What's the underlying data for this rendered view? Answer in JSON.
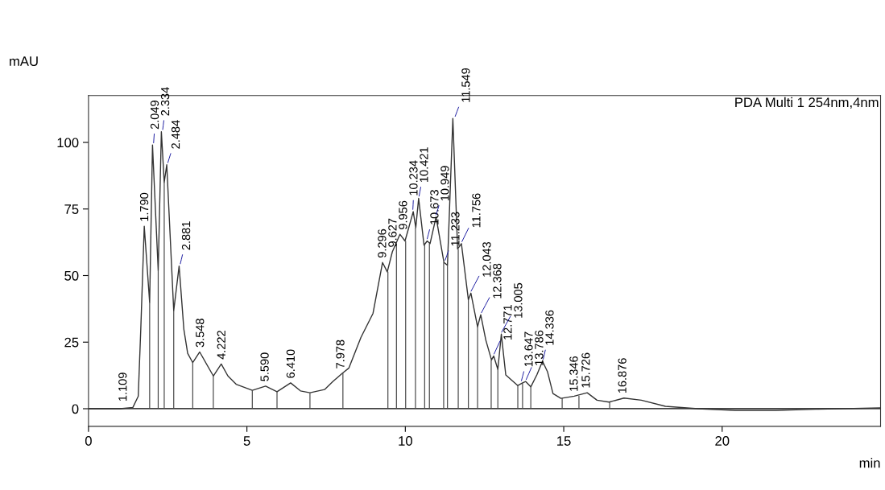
{
  "chart_data": {
    "type": "line",
    "xlabel": "min",
    "ylabel": "mAU",
    "xlim": [
      0,
      25
    ],
    "ylim": [
      -6.6,
      117.6
    ],
    "xticks": [
      0,
      5,
      10,
      15,
      20
    ],
    "yticks": [
      0,
      25,
      50,
      75,
      100
    ],
    "grid": false,
    "marker": "none",
    "line_style": "solid",
    "series": [
      {
        "color": "#333333",
        "x": [
          0,
          1.0,
          1.4,
          1.57,
          1.65,
          1.76,
          1.93,
          2.02,
          2.2,
          2.3,
          2.39,
          2.47,
          2.69,
          2.86,
          3.01,
          3.13,
          3.29,
          3.51,
          3.94,
          4.19,
          4.4,
          4.66,
          5.17,
          5.59,
          5.95,
          6.38,
          6.69,
          6.99,
          7.45,
          7.71,
          8.01,
          8.22,
          8.6,
          8.98,
          9.28,
          9.43,
          9.59,
          9.83,
          9.99,
          10.25,
          10.33,
          10.42,
          10.59,
          10.69,
          10.78,
          10.97,
          11.22,
          11.33,
          11.5,
          11.65,
          11.77,
          11.99,
          12.07,
          12.28,
          12.38,
          12.54,
          12.72,
          12.79,
          12.92,
          13.03,
          13.17,
          13.55,
          13.7,
          13.8,
          13.96,
          14.15,
          14.33,
          14.49,
          14.66,
          14.91,
          15.33,
          15.74,
          16.05,
          16.43,
          16.9,
          17.45,
          18.21,
          19.23,
          20.41,
          21.7,
          22.96,
          24.97
        ],
        "values": [
          0,
          0,
          0.5,
          4.7,
          29.8,
          68.5,
          39.9,
          99,
          51.9,
          104,
          85,
          91.6,
          36.8,
          53.6,
          29.8,
          20.8,
          17.3,
          21.3,
          12.3,
          16.8,
          12.3,
          9.2,
          6.9,
          8.5,
          6.4,
          9.7,
          6.7,
          6.0,
          7.2,
          10.2,
          13.3,
          15.3,
          26.8,
          35.8,
          54.9,
          51.4,
          58.9,
          65.5,
          63,
          74,
          68,
          79,
          61.4,
          63,
          62,
          72,
          54.9,
          53.9,
          109,
          60,
          62,
          40.9,
          43.4,
          30.8,
          35.3,
          25.8,
          18.3,
          19.8,
          14.8,
          28,
          12.7,
          8.7,
          9.7,
          10.2,
          8.2,
          12.7,
          17.8,
          13.8,
          5.7,
          3.9,
          4.7,
          6.0,
          3.2,
          2.5,
          4.0,
          3.2,
          0.9,
          0,
          -0.6,
          -0.6,
          -0.2,
          0.3
        ]
      },
      {
        "type": "bar",
        "color": "#444444",
        "x": [
          1.93,
          2.2,
          2.39,
          2.69,
          3.29,
          3.94,
          5.17,
          5.95,
          6.99,
          8.03,
          9.45,
          9.72,
          10.01,
          10.32,
          10.61,
          10.76,
          11.21,
          11.33,
          11.67,
          11.99,
          12.28,
          12.71,
          12.92,
          13.55,
          13.7,
          13.96,
          14.95,
          15.48,
          16.45
        ],
        "values": [
          39.9,
          51.9,
          85,
          36.8,
          17.3,
          12.3,
          6.9,
          6.4,
          6.0,
          13.3,
          51.4,
          62,
          63,
          68,
          61.4,
          62,
          54.9,
          53.9,
          60,
          40.9,
          30.8,
          18.3,
          14.8,
          8.7,
          9.7,
          8.2,
          3.9,
          4.8,
          2.5
        ]
      }
    ],
    "ref_lines": [
      {
        "axis": "y",
        "value": 0,
        "color": "#000000"
      }
    ],
    "annotations": [
      "PDA Multi 1 254nm,4nm",
      {
        "text": "1.109",
        "x": 1.109,
        "y": 1
      },
      {
        "text": "1.790",
        "x": 1.79,
        "y": 68.5
      },
      {
        "text": "2.049",
        "x": 2.049,
        "y": 99
      },
      {
        "text": "2.334",
        "x": 2.334,
        "y": 104
      },
      {
        "text": "2.484",
        "x": 2.484,
        "y": 91.6
      },
      {
        "text": "2.881",
        "x": 2.881,
        "y": 53.6
      },
      {
        "text": "3.548",
        "x": 3.548,
        "y": 21.3
      },
      {
        "text": "4.222",
        "x": 4.222,
        "y": 16.8
      },
      {
        "text": "5.590",
        "x": 5.59,
        "y": 8.5
      },
      {
        "text": "6.410",
        "x": 6.41,
        "y": 9.7
      },
      {
        "text": "7.978",
        "x": 7.978,
        "y": 13.3
      },
      {
        "text": "9.296",
        "x": 9.296,
        "y": 54.9
      },
      {
        "text": "9.627",
        "x": 9.627,
        "y": 58.9
      },
      {
        "text": "9.956",
        "x": 9.956,
        "y": 65.5
      },
      {
        "text": "10.234",
        "x": 10.234,
        "y": 74
      },
      {
        "text": "10.421",
        "x": 10.421,
        "y": 79
      },
      {
        "text": "10.673",
        "x": 10.673,
        "y": 63
      },
      {
        "text": "10.949",
        "x": 10.949,
        "y": 72
      },
      {
        "text": "11.233",
        "x": 11.233,
        "y": 55
      },
      {
        "text": "11.549",
        "x": 11.549,
        "y": 109
      },
      {
        "text": "11.756",
        "x": 11.756,
        "y": 62
      },
      {
        "text": "12.043",
        "x": 12.043,
        "y": 43.4
      },
      {
        "text": "12.368",
        "x": 12.368,
        "y": 35.3
      },
      {
        "text": "12.771",
        "x": 12.771,
        "y": 19.8
      },
      {
        "text": "13.005",
        "x": 13.005,
        "y": 28
      },
      {
        "text": "13.647",
        "x": 13.647,
        "y": 9.7
      },
      {
        "text": "13.786",
        "x": 13.786,
        "y": 10.2
      },
      {
        "text": "14.336",
        "x": 14.336,
        "y": 17.8
      },
      {
        "text": "15.346",
        "x": 15.346,
        "y": 4.7
      },
      {
        "text": "15.726",
        "x": 15.726,
        "y": 6.0
      },
      {
        "text": "16.876",
        "x": 16.876,
        "y": 4.0
      }
    ]
  }
}
